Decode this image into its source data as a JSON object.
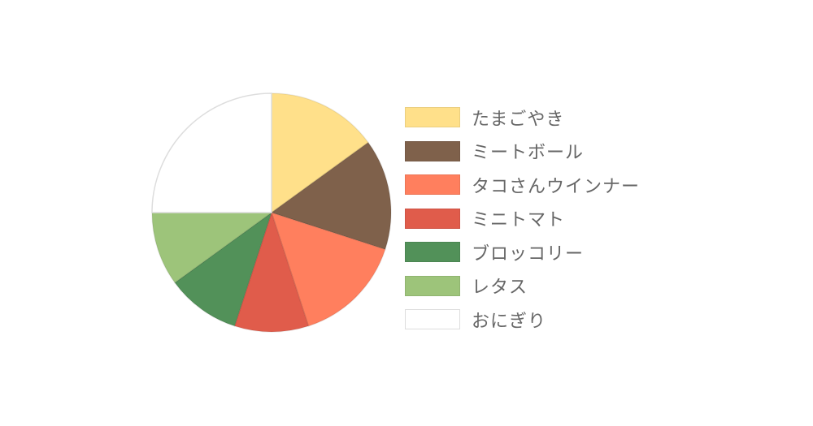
{
  "chart_data": {
    "type": "pie",
    "start_angle": "top, clockwise",
    "legend_position": "right",
    "slices": [
      {
        "label": "たまごやき",
        "value": 15,
        "color": "#FFE08A"
      },
      {
        "label": "ミートボール",
        "value": 15,
        "color": "#7F614B"
      },
      {
        "label": "タコさんウインナー",
        "value": 15,
        "color": "#FF7F5E"
      },
      {
        "label": "ミニトマト",
        "value": 10,
        "color": "#E05C4B"
      },
      {
        "label": "ブロッコリー",
        "value": 10,
        "color": "#529159"
      },
      {
        "label": "レタス",
        "value": 10,
        "color": "#9DC47A"
      },
      {
        "label": "おにぎり",
        "value": 25,
        "color": "#FFFFFF"
      }
    ]
  }
}
